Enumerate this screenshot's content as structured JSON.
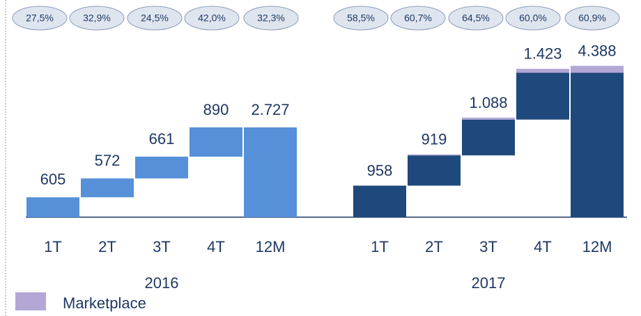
{
  "chart_data": {
    "type": "waterfall",
    "ylim": [
      0,
      4600
    ],
    "legend": {
      "name": "Marketplace",
      "color": "#b4a7d6"
    },
    "groups": [
      {
        "name": "2016",
        "color": "#5590d8",
        "categories": [
          "1T",
          "2T",
          "3T",
          "4T",
          "12M"
        ],
        "values": [
          605,
          572,
          661,
          890,
          2727
        ],
        "value_labels": [
          "605",
          "572",
          "661",
          "890",
          "2.727"
        ],
        "shares": [
          27.5,
          32.9,
          24.5,
          42.0,
          32.3
        ],
        "share_labels": [
          "27,5%",
          "32,9%",
          "24,5%",
          "42,0%",
          "32,3%"
        ]
      },
      {
        "name": "2017",
        "color": "#1f497d",
        "categories": [
          "1T",
          "2T",
          "3T",
          "4T",
          "12M"
        ],
        "values": [
          958,
          919,
          1088,
          1423,
          4388
        ],
        "value_labels": [
          "958",
          "919",
          "1.088",
          "1.423",
          "4.388"
        ],
        "marketplace": [
          0,
          30,
          60,
          120,
          210
        ],
        "shares": [
          58.5,
          60.7,
          64.5,
          60.0,
          60.9
        ],
        "share_labels": [
          "58,5%",
          "60,7%",
          "64,5%",
          "60,0%",
          "60,9%"
        ]
      }
    ]
  }
}
